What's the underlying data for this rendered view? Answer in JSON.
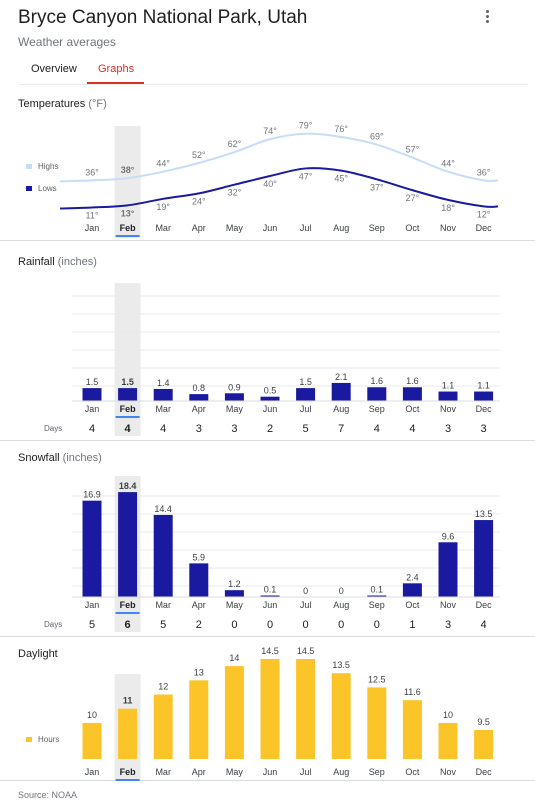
{
  "header": {
    "title": "Bryce Canyon National Park, Utah",
    "subtitle": "Weather averages",
    "tabs": [
      "Overview",
      "Graphs"
    ],
    "active_tab": "Graphs"
  },
  "source": "Source: NOAA",
  "selected_month": "Feb",
  "colors": {
    "highs": "#c6ddf7",
    "lows": "#1a1aa0",
    "bars": "#1a1aa0",
    "daylight": "#fbc52a",
    "accent": "#d93025",
    "selection": "#ebebeb",
    "tab_underline": "#4285f4"
  },
  "chart_data": [
    {
      "id": "temperatures",
      "type": "line",
      "title": "Temperatures",
      "unit": "(°F)",
      "categories": [
        "Jan",
        "Feb",
        "Mar",
        "Apr",
        "May",
        "Jun",
        "Jul",
        "Aug",
        "Sep",
        "Oct",
        "Nov",
        "Dec"
      ],
      "series": [
        {
          "name": "Highs",
          "values": [
            36,
            38,
            44,
            52,
            62,
            74,
            79,
            76,
            69,
            57,
            44,
            36
          ]
        },
        {
          "name": "Lows",
          "values": [
            11,
            13,
            19,
            24,
            32,
            40,
            47,
            45,
            37,
            27,
            18,
            12
          ]
        }
      ],
      "labels": {
        "Highs": [
          "36°",
          "38°",
          "44°",
          "52°",
          "62°",
          "74°",
          "79°",
          "76°",
          "69°",
          "57°",
          "44°",
          "36°"
        ],
        "Lows": [
          "11°",
          "13°",
          "19°",
          "24°",
          "32°",
          "40°",
          "47°",
          "45°",
          "37°",
          "27°",
          "18°",
          "12°"
        ]
      },
      "legend": "left"
    },
    {
      "id": "rainfall",
      "type": "bar",
      "title": "Rainfall",
      "unit": "(inches)",
      "categories": [
        "Jan",
        "Feb",
        "Mar",
        "Apr",
        "May",
        "Jun",
        "Jul",
        "Aug",
        "Sep",
        "Oct",
        "Nov",
        "Dec"
      ],
      "values": [
        1.5,
        1.5,
        1.4,
        0.8,
        0.9,
        0.5,
        1.5,
        2.1,
        1.6,
        1.6,
        1.1,
        1.1
      ],
      "value_labels": [
        "1.5",
        "1.5",
        "1.4",
        "0.8",
        "0.9",
        "0.5",
        "1.5",
        "2.1",
        "1.6",
        "1.6",
        "1.1",
        "1.1"
      ],
      "days_label": "Days",
      "days": [
        "4",
        "4",
        "4",
        "3",
        "3",
        "2",
        "5",
        "7",
        "4",
        "4",
        "3",
        "3"
      ]
    },
    {
      "id": "snowfall",
      "type": "bar",
      "title": "Snowfall",
      "unit": "(inches)",
      "categories": [
        "Jan",
        "Feb",
        "Mar",
        "Apr",
        "May",
        "Jun",
        "Jul",
        "Aug",
        "Sep",
        "Oct",
        "Nov",
        "Dec"
      ],
      "values": [
        16.9,
        18.4,
        14.4,
        5.9,
        1.2,
        0.1,
        0,
        0,
        0.1,
        2.4,
        9.6,
        13.5
      ],
      "value_labels": [
        "16.9",
        "18.4",
        "14.4",
        "5.9",
        "1.2",
        "0.1",
        "0",
        "0",
        "0.1",
        "2.4",
        "9.6",
        "13.5"
      ],
      "days_label": "Days",
      "days": [
        "5",
        "6",
        "5",
        "2",
        "0",
        "0",
        "0",
        "0",
        "0",
        "1",
        "3",
        "4"
      ]
    },
    {
      "id": "daylight",
      "type": "bar",
      "title": "Daylight",
      "unit": "",
      "series_name": "Hours",
      "categories": [
        "Jan",
        "Feb",
        "Mar",
        "Apr",
        "May",
        "Jun",
        "Jul",
        "Aug",
        "Sep",
        "Oct",
        "Nov",
        "Dec"
      ],
      "values": [
        10,
        11,
        12,
        13,
        14,
        14.5,
        14.5,
        13.5,
        12.5,
        11.6,
        10,
        9.5
      ],
      "value_labels": [
        "10",
        "11",
        "12",
        "13",
        "14",
        "14.5",
        "14.5",
        "13.5",
        "12.5",
        "11.6",
        "10",
        "9.5"
      ],
      "legend": "left"
    }
  ]
}
